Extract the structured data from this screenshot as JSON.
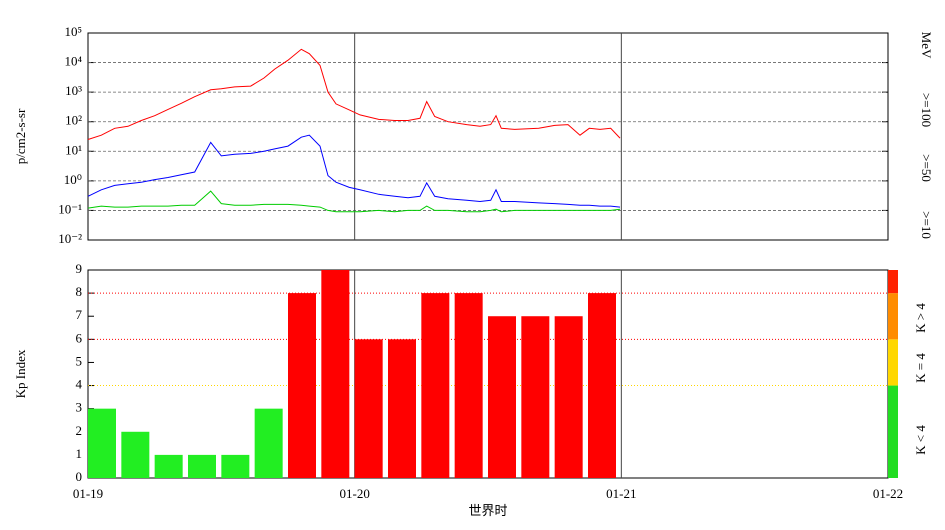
{
  "chart_data": [
    {
      "type": "line",
      "ylabel": "p/cm2-s-sr",
      "log_y": true,
      "grid": true,
      "legend_title": "MeV",
      "xlim": [
        0,
        3
      ],
      "xticks": [
        0,
        1,
        2,
        3
      ],
      "ylim": [
        0.01,
        100000
      ],
      "yticks": [
        {
          "value": 0.01,
          "label": "10⁻²"
        },
        {
          "value": 0.1,
          "label": "10⁻¹"
        },
        {
          "value": 1,
          "label": "10⁰"
        },
        {
          "value": 10,
          "label": "10¹"
        },
        {
          "value": 100,
          "label": "10²"
        },
        {
          "value": 1000,
          "label": "10³"
        },
        {
          "value": 10000,
          "label": "10⁴"
        },
        {
          "value": 100000,
          "label": "10⁵"
        }
      ],
      "x": [
        0,
        0.05,
        0.1,
        0.15,
        0.2,
        0.25,
        0.3,
        0.35,
        0.4,
        0.46,
        0.5,
        0.55,
        0.61,
        0.66,
        0.7,
        0.75,
        0.8,
        0.83,
        0.87,
        0.9,
        0.93,
        0.98,
        1.02,
        1.09,
        1.15,
        1.2,
        1.245,
        1.27,
        1.3,
        1.35,
        1.42,
        1.47,
        1.51,
        1.53,
        1.55,
        1.6,
        1.69,
        1.75,
        1.8,
        1.845,
        1.88,
        1.92,
        1.96,
        1.995
      ],
      "series": [
        {
          "name": ">=10",
          "color": "#ff0000",
          "values": [
            25,
            35,
            60,
            70,
            110,
            160,
            260,
            420,
            700,
            1200,
            1300,
            1500,
            1600,
            3000,
            6000,
            12000,
            28000,
            20000,
            8000,
            1000,
            400,
            250,
            170,
            120,
            110,
            110,
            130,
            480,
            150,
            100,
            80,
            70,
            80,
            160,
            60,
            55,
            60,
            75,
            80,
            35,
            60,
            55,
            60,
            28
          ]
        },
        {
          "name": ">=50",
          "color": "#0000ff",
          "values": [
            0.3,
            0.5,
            0.7,
            0.8,
            0.9,
            1.1,
            1.3,
            1.6,
            2.0,
            20,
            7,
            8,
            8.5,
            10,
            12,
            15,
            30,
            35,
            15,
            1.5,
            0.9,
            0.6,
            0.5,
            0.35,
            0.3,
            0.27,
            0.3,
            0.85,
            0.3,
            0.25,
            0.22,
            0.2,
            0.22,
            0.5,
            0.2,
            0.2,
            0.18,
            0.17,
            0.16,
            0.15,
            0.15,
            0.14,
            0.14,
            0.13
          ]
        },
        {
          "name": ">=100",
          "color": "#00cc00",
          "values": [
            0.12,
            0.14,
            0.13,
            0.13,
            0.14,
            0.14,
            0.14,
            0.15,
            0.15,
            0.45,
            0.17,
            0.15,
            0.15,
            0.16,
            0.16,
            0.16,
            0.15,
            0.14,
            0.13,
            0.1,
            0.09,
            0.09,
            0.09,
            0.1,
            0.09,
            0.1,
            0.1,
            0.14,
            0.1,
            0.1,
            0.09,
            0.09,
            0.1,
            0.11,
            0.09,
            0.1,
            0.1,
            0.1,
            0.1,
            0.1,
            0.1,
            0.1,
            0.1,
            0.11
          ]
        }
      ]
    },
    {
      "type": "bar",
      "ylabel": "Kp Index",
      "xlabel": "世界时",
      "grid": true,
      "xlim": [
        0,
        3
      ],
      "xticks": [
        {
          "value": 0,
          "label": "01-19"
        },
        {
          "value": 1,
          "label": "01-20"
        },
        {
          "value": 2,
          "label": "01-21"
        },
        {
          "value": 3,
          "label": "01-22"
        }
      ],
      "ylim": [
        0,
        9
      ],
      "yticks": [
        0,
        1,
        2,
        3,
        4,
        5,
        6,
        7,
        8,
        9
      ],
      "hlines": [
        {
          "value": 4,
          "color": "#ffd700"
        },
        {
          "value": 6,
          "color": "#ff0000"
        },
        {
          "value": 8,
          "color": "#ff0000"
        }
      ],
      "x": [
        0,
        0.125,
        0.25,
        0.375,
        0.5,
        0.625,
        0.75,
        0.875,
        1,
        1.125,
        1.25,
        1.375,
        1.5,
        1.625,
        1.75,
        1.875
      ],
      "values": [
        3,
        2,
        1,
        1,
        1,
        3,
        8,
        9,
        6,
        6,
        8,
        8,
        7,
        7,
        7,
        8
      ],
      "colors": [
        "#22ee22",
        "#22ee22",
        "#22ee22",
        "#22ee22",
        "#22ee22",
        "#22ee22",
        "#ff0000",
        "#ff0000",
        "#ff0000",
        "#ff0000",
        "#ff0000",
        "#ff0000",
        "#ff0000",
        "#ff0000",
        "#ff0000",
        "#ff0000"
      ],
      "scale_bar": [
        {
          "from": 0,
          "to": 4,
          "color": "#22dd22"
        },
        {
          "from": 4,
          "to": 6,
          "color": "#ffd700"
        },
        {
          "from": 6,
          "to": 8,
          "color": "#ff8c00"
        },
        {
          "from": 8,
          "to": 9,
          "color": "#ff2200"
        }
      ],
      "legend": [
        {
          "label": "K > 4",
          "color": "#ff0000"
        },
        {
          "label": "K = 4",
          "color": "#ffd700"
        },
        {
          "label": "K < 4",
          "color": "#22dd22"
        }
      ]
    }
  ]
}
